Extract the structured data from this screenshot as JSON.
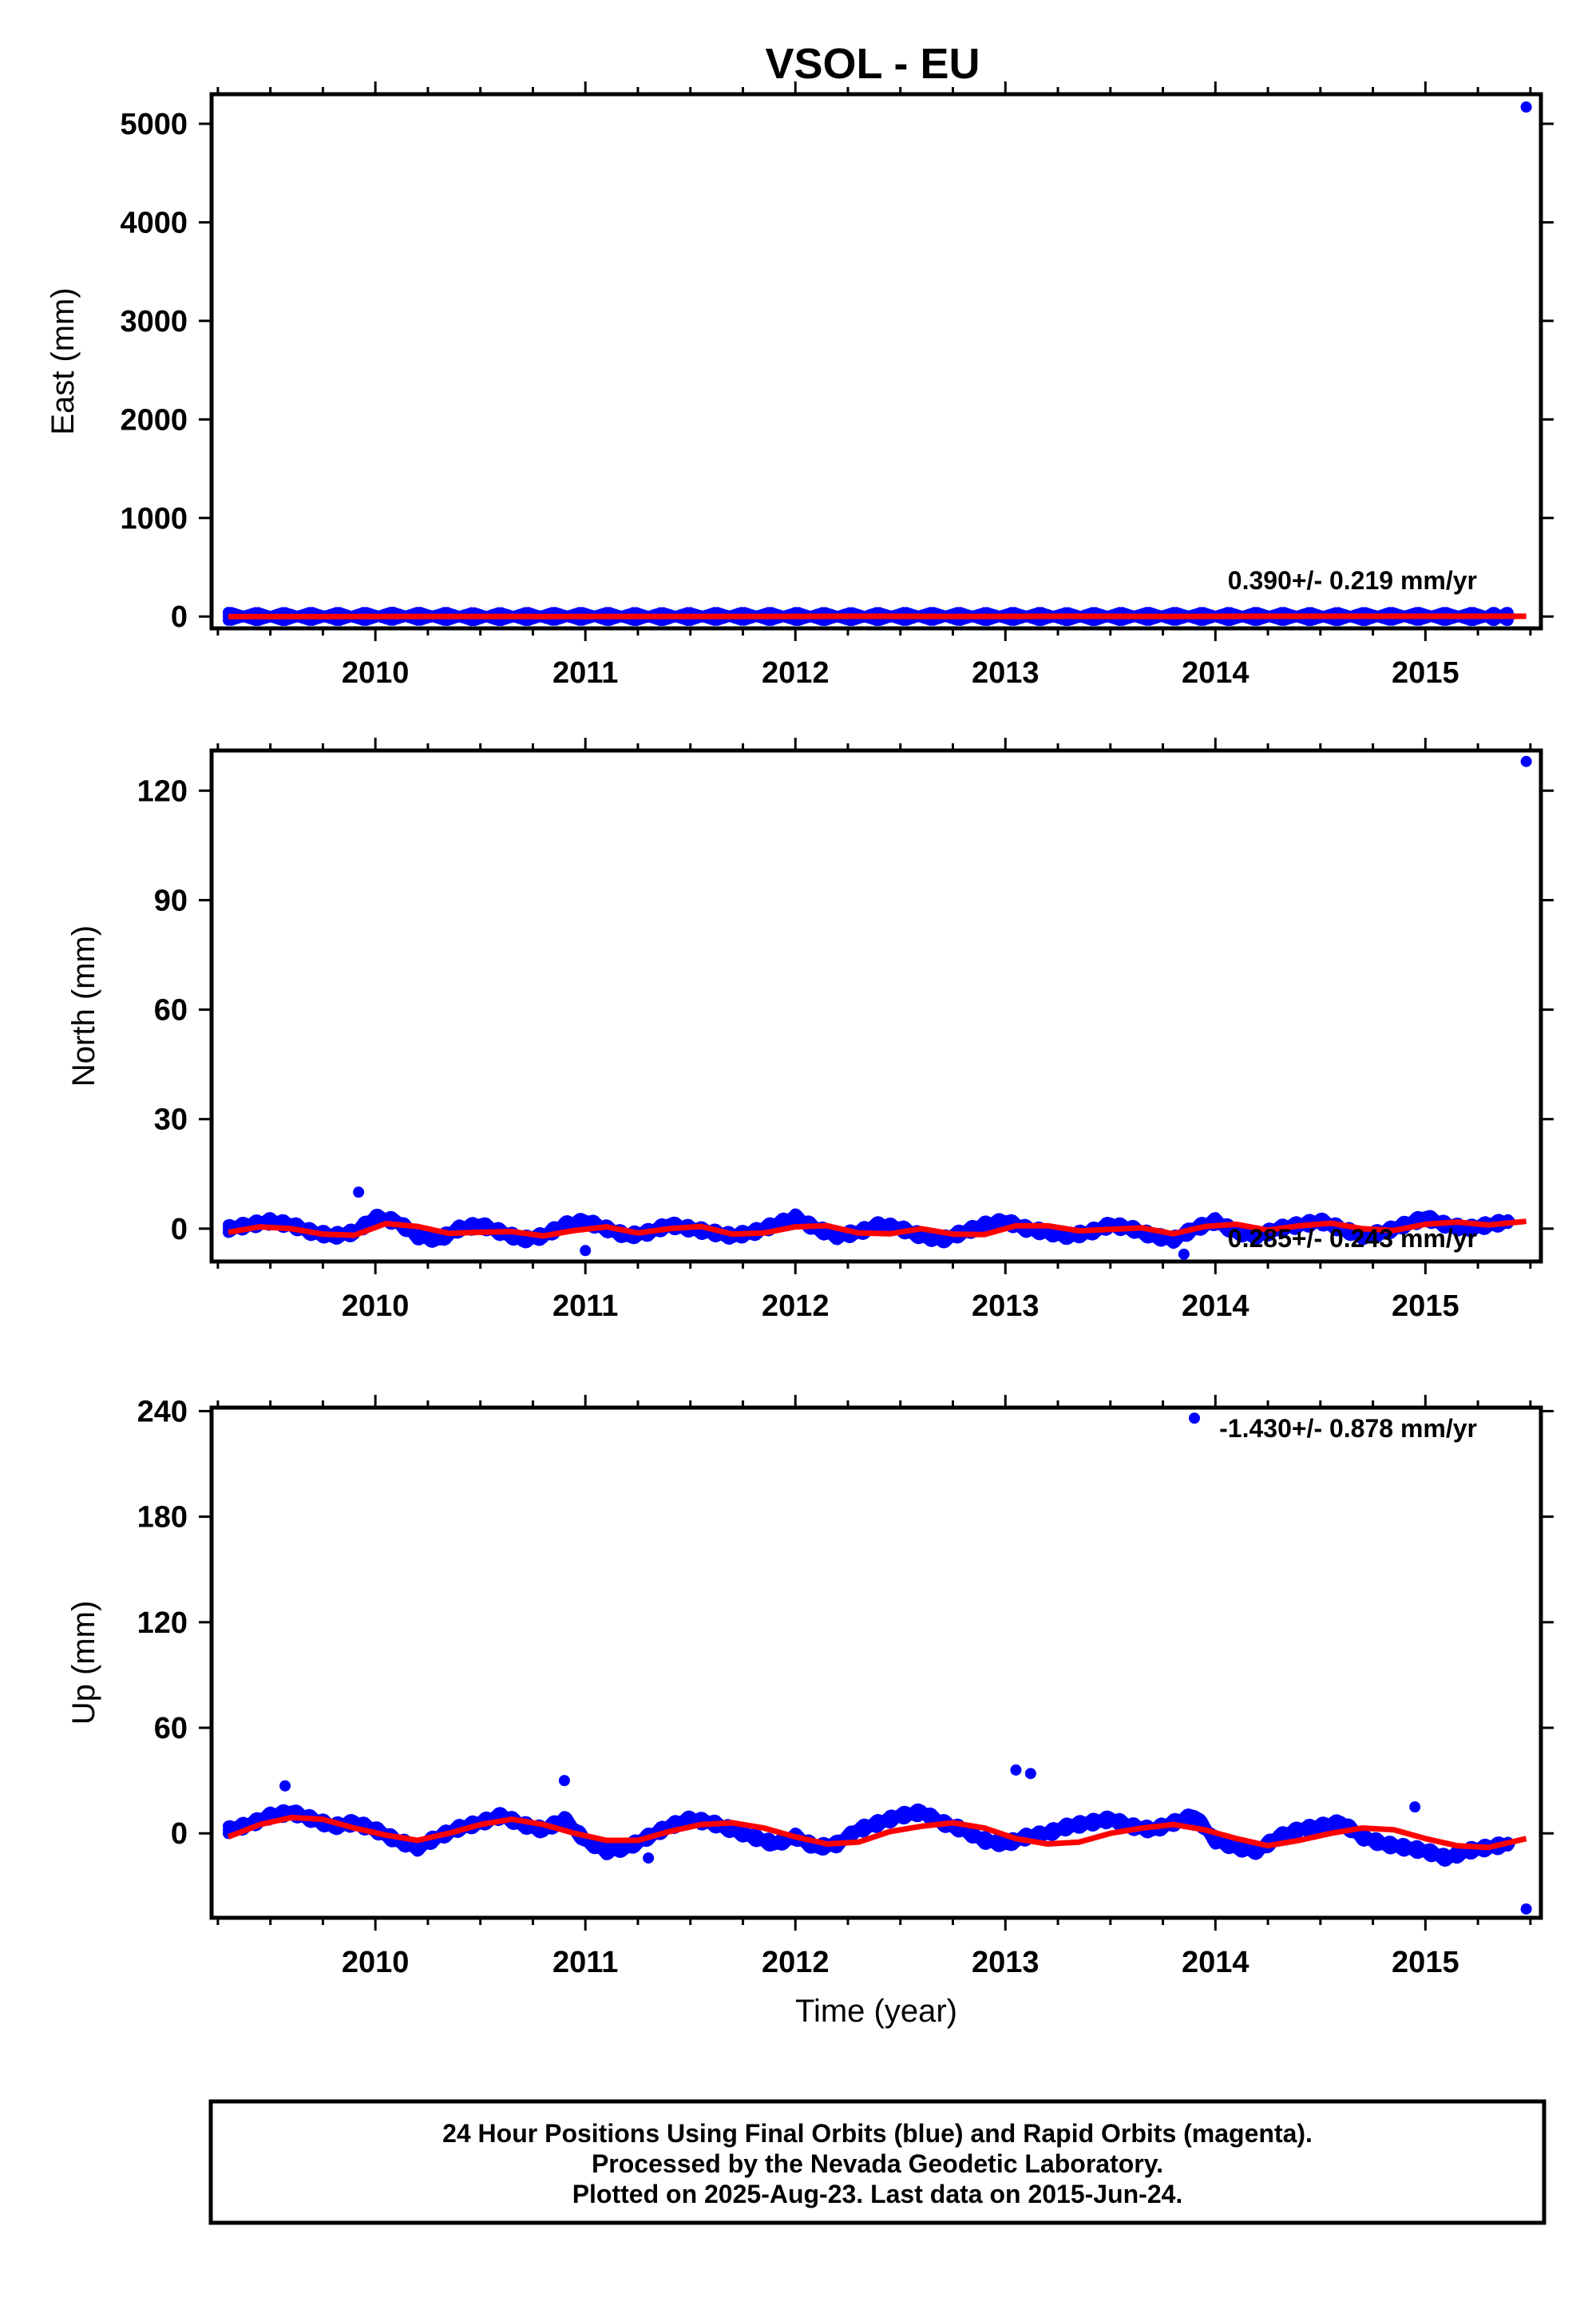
{
  "title": "VSOL - EU",
  "chart_data": [
    {
      "type": "scatter",
      "ylabel": "East (mm)",
      "xlabel": "",
      "xlim": [
        2009.22,
        2015.55
      ],
      "ylim": [
        -120,
        5300
      ],
      "yticks": [
        0,
        1000,
        2000,
        3000,
        4000,
        5000
      ],
      "xticks": [
        2010,
        2011,
        2012,
        2013,
        2014,
        2015
      ],
      "rate_text": "0.390+/- 0.219 mm/yr",
      "series": [
        {
          "x": [
            2009.3,
            2009.5,
            2009.7,
            2009.9,
            2010.1,
            2010.3,
            2010.5,
            2010.7,
            2010.9,
            2011.1,
            2011.3,
            2011.5,
            2011.7,
            2011.9,
            2012.1,
            2012.3,
            2012.5,
            2012.7,
            2012.9,
            2013.1,
            2013.3,
            2013.5,
            2013.7,
            2013.9,
            2014.1,
            2014.3,
            2014.5,
            2014.7,
            2014.9,
            2015.1,
            2015.3,
            2015.4
          ],
          "y": [
            2,
            -1,
            1,
            0,
            3,
            1,
            -2,
            0,
            2,
            1,
            -1,
            0,
            2,
            1,
            0,
            -1,
            1,
            2,
            0,
            1,
            -1,
            0,
            2,
            1,
            0,
            1,
            -1,
            0,
            2,
            1,
            0,
            1
          ]
        },
        {
          "x": [
            2015.48
          ],
          "y": [
            5170
          ]
        },
        {
          "x": [
            2009.3,
            2009.8,
            2010.3,
            2010.8,
            2011.3,
            2011.8,
            2012.3,
            2012.8,
            2013.3,
            2013.8,
            2014.3,
            2014.8,
            2015.3,
            2015.48
          ],
          "y": [
            -1,
            0,
            1,
            0,
            1,
            1,
            2,
            1,
            2,
            1,
            2,
            2,
            2,
            2
          ]
        }
      ]
    },
    {
      "type": "scatter",
      "ylabel": "North (mm)",
      "xlabel": "",
      "xlim": [
        2009.22,
        2015.55
      ],
      "ylim": [
        -9,
        131
      ],
      "yticks": [
        0,
        30,
        60,
        90,
        120
      ],
      "xticks": [
        2010,
        2011,
        2012,
        2013,
        2014,
        2015
      ],
      "rate_text": "0.285+/- 0.243 mm/yr",
      "series": [
        {
          "x": [
            2009.3,
            2009.4,
            2009.5,
            2009.6,
            2009.7,
            2009.8,
            2009.9,
            2010.0,
            2010.1,
            2010.2,
            2010.3,
            2010.4,
            2010.5,
            2010.6,
            2010.7,
            2010.8,
            2010.9,
            2011.0,
            2011.1,
            2011.2,
            2011.3,
            2011.4,
            2011.5,
            2011.6,
            2011.7,
            2011.8,
            2011.9,
            2012.0,
            2012.1,
            2012.2,
            2012.3,
            2012.4,
            2012.5,
            2012.6,
            2012.7,
            2012.8,
            2012.9,
            2013.0,
            2013.1,
            2013.2,
            2013.3,
            2013.4,
            2013.5,
            2013.6,
            2013.7,
            2013.8,
            2013.9,
            2014.0,
            2014.1,
            2014.2,
            2014.3,
            2014.4,
            2014.5,
            2014.6,
            2014.7,
            2014.8,
            2014.9,
            2015.0,
            2015.1,
            2015.2,
            2015.3,
            2015.4
          ],
          "y": [
            0,
            1,
            2,
            1,
            -1,
            -2,
            -1,
            3,
            2,
            -2,
            -3,
            0,
            1,
            -1,
            -3,
            -2,
            1,
            2,
            0,
            -2,
            -1,
            1,
            0,
            -1,
            -2,
            -1,
            1,
            3,
            0,
            -2,
            -1,
            1,
            0,
            -2,
            -3,
            -1,
            1,
            2,
            0,
            -1,
            -2,
            -1,
            1,
            0,
            -2,
            -3,
            0,
            2,
            -1,
            -2,
            0,
            1,
            2,
            0,
            -2,
            -1,
            1,
            3,
            1,
            0,
            1,
            2
          ]
        },
        {
          "x": [
            2009.92,
            2011.0,
            2013.85,
            2015.48
          ],
          "y": [
            10,
            -6,
            -7,
            128
          ]
        },
        {
          "x": [
            2009.3,
            2009.45,
            2009.6,
            2009.75,
            2009.9,
            2010.05,
            2010.2,
            2010.35,
            2010.5,
            2010.65,
            2010.8,
            2010.95,
            2011.1,
            2011.25,
            2011.4,
            2011.55,
            2011.7,
            2011.85,
            2012.0,
            2012.15,
            2012.3,
            2012.45,
            2012.6,
            2012.75,
            2012.9,
            2013.05,
            2013.2,
            2013.35,
            2013.5,
            2013.65,
            2013.8,
            2013.95,
            2014.1,
            2014.25,
            2014.4,
            2014.55,
            2014.7,
            2014.85,
            2015.0,
            2015.15,
            2015.3,
            2015.48
          ],
          "y": [
            -1,
            0.5,
            0,
            -1.5,
            -1.8,
            1.4,
            0.6,
            -1.3,
            -1.0,
            -0.8,
            -2.0,
            -0.5,
            0.5,
            -1.2,
            0.0,
            0.6,
            -1.5,
            -1.2,
            0.5,
            0.8,
            -1.2,
            -1.4,
            0.0,
            -1.5,
            -1.6,
            0.8,
            0.8,
            -0.6,
            -0.2,
            0.2,
            -1.4,
            0.6,
            1.2,
            -0.4,
            0.8,
            1.5,
            0.0,
            -0.5,
            1.2,
            1.8,
            1.0,
            2.0
          ]
        }
      ]
    },
    {
      "type": "scatter",
      "ylabel": "Up (mm)",
      "xlabel": "Time (year)",
      "xlim": [
        2009.22,
        2015.55
      ],
      "ylim": [
        -48,
        242
      ],
      "yticks": [
        0,
        60,
        120,
        180,
        240
      ],
      "xticks": [
        2010,
        2011,
        2012,
        2013,
        2014,
        2015
      ],
      "rate_text": "-1.430+/- 0.878 mm/yr",
      "series": [
        {
          "x": [
            2009.3,
            2009.4,
            2009.5,
            2009.6,
            2009.7,
            2009.8,
            2009.9,
            2010.0,
            2010.1,
            2010.2,
            2010.3,
            2010.4,
            2010.5,
            2010.6,
            2010.7,
            2010.8,
            2010.9,
            2011.0,
            2011.1,
            2011.2,
            2011.3,
            2011.4,
            2011.5,
            2011.6,
            2011.7,
            2011.8,
            2011.9,
            2012.0,
            2012.1,
            2012.2,
            2012.3,
            2012.4,
            2012.5,
            2012.6,
            2012.7,
            2012.8,
            2012.9,
            2013.0,
            2013.1,
            2013.2,
            2013.3,
            2013.4,
            2013.5,
            2013.6,
            2013.7,
            2013.8,
            2013.9,
            2014.0,
            2014.1,
            2014.2,
            2014.3,
            2014.4,
            2014.5,
            2014.6,
            2014.7,
            2014.8,
            2014.9,
            2015.0,
            2015.1,
            2015.2,
            2015.3,
            2015.4
          ],
          "y": [
            2,
            5,
            10,
            12,
            8,
            4,
            6,
            2,
            -4,
            -8,
            -2,
            3,
            6,
            10,
            5,
            2,
            8,
            -4,
            -10,
            -8,
            -2,
            4,
            8,
            6,
            2,
            -2,
            -6,
            -2,
            -8,
            -6,
            2,
            6,
            10,
            12,
            6,
            2,
            -4,
            -6,
            -2,
            0,
            4,
            6,
            8,
            4,
            2,
            6,
            10,
            -4,
            -8,
            -10,
            -2,
            2,
            4,
            6,
            -2,
            -6,
            -8,
            -10,
            -14,
            -10,
            -8,
            -6
          ]
        },
        {
          "x": [
            2009.57,
            2010.9,
            2011.3,
            2013.05,
            2013.12,
            2013.9,
            2014.95,
            2015.48
          ],
          "y": [
            27,
            30,
            -14,
            36,
            34,
            236,
            15,
            -43
          ]
        },
        {
          "x": [
            2009.3,
            2009.45,
            2009.6,
            2009.75,
            2009.9,
            2010.05,
            2010.2,
            2010.35,
            2010.5,
            2010.65,
            2010.8,
            2010.95,
            2011.1,
            2011.25,
            2011.4,
            2011.55,
            2011.7,
            2011.85,
            2012.0,
            2012.15,
            2012.3,
            2012.45,
            2012.6,
            2012.75,
            2012.9,
            2013.05,
            2013.2,
            2013.35,
            2013.5,
            2013.65,
            2013.8,
            2013.95,
            2014.1,
            2014.25,
            2014.4,
            2014.55,
            2014.7,
            2014.85,
            2015.0,
            2015.15,
            2015.3,
            2015.48
          ],
          "y": [
            -2,
            5,
            9,
            8,
            3,
            -1,
            -4,
            0,
            5,
            8,
            5,
            0,
            -4,
            -4,
            1,
            5,
            6,
            3,
            -2,
            -6,
            -5,
            1,
            4,
            6,
            3,
            -3,
            -6,
            -5,
            0,
            3,
            5,
            2,
            -3,
            -7,
            -4,
            0,
            3,
            2,
            -3,
            -7,
            -8,
            -3
          ]
        }
      ]
    }
  ],
  "footer": {
    "line1": "24 Hour Positions Using Final Orbits (blue) and Rapid Orbits (magenta).",
    "line2": "Processed by the Nevada Geodetic Laboratory.",
    "line3": "Plotted on 2025-Aug-23. Last data on 2015-Jun-24."
  },
  "colors": {
    "points": "#0000ff",
    "fit": "#ff0000",
    "frame": "#000000"
  }
}
